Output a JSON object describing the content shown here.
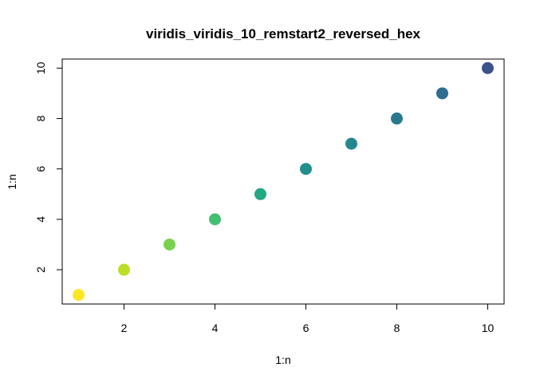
{
  "chart_data": {
    "type": "scatter",
    "title": "viridis_viridis_10_remstart2_reversed_hex",
    "xlabel": "1:n",
    "ylabel": "1:n",
    "x": [
      1,
      2,
      3,
      4,
      5,
      6,
      7,
      8,
      9,
      10
    ],
    "y": [
      1,
      2,
      3,
      4,
      5,
      6,
      7,
      8,
      9,
      10
    ],
    "point_colors": [
      "#FDE725",
      "#BBDF27",
      "#7AD151",
      "#43BF71",
      "#22A884",
      "#21908C",
      "#23888E",
      "#2A788E",
      "#2F6C8E",
      "#3B528B"
    ],
    "xlim": [
      0.64,
      10.36
    ],
    "ylim": [
      0.64,
      10.36
    ],
    "x_ticks": [
      2,
      4,
      6,
      8,
      10
    ],
    "y_ticks": [
      2,
      4,
      6,
      8,
      10
    ],
    "grid": false,
    "legend": "none"
  }
}
